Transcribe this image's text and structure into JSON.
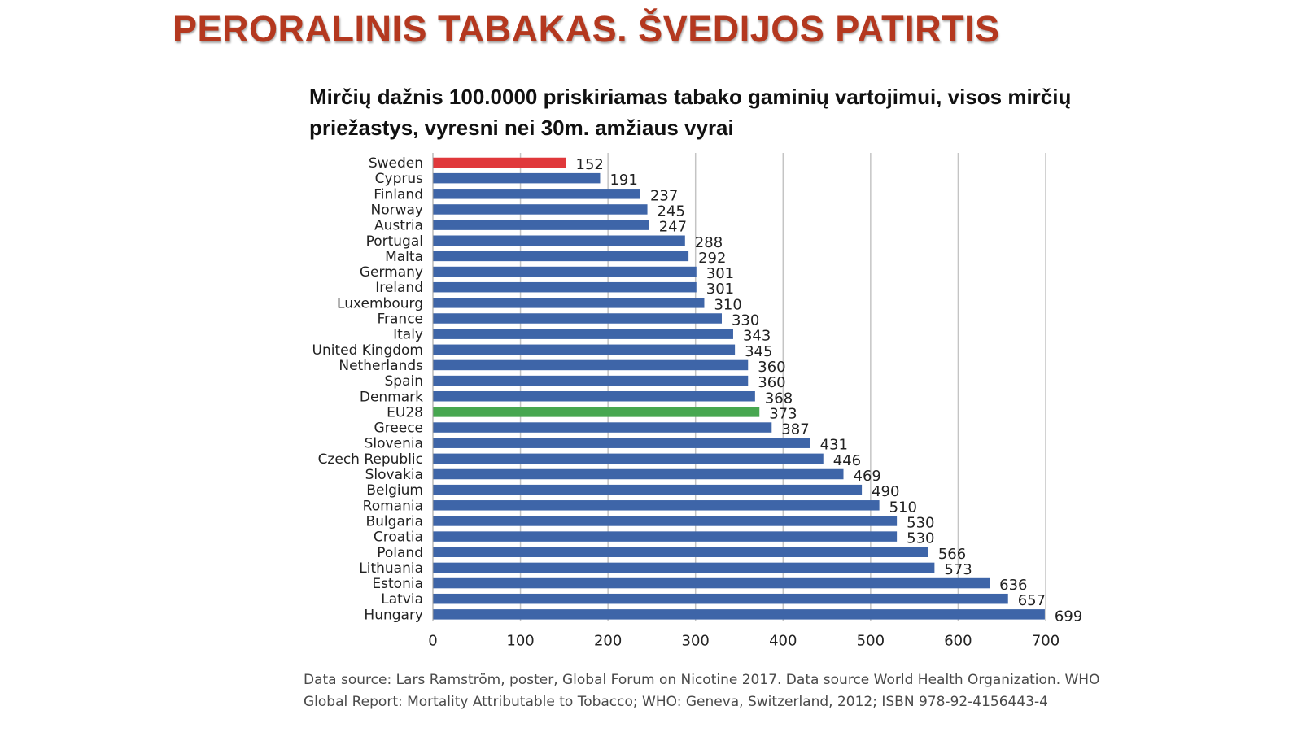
{
  "header": {
    "title": "PERORALINIS TABAKAS. ŠVEDIJOS PATIRTIS"
  },
  "chart_data": {
    "type": "bar",
    "orientation": "horizontal",
    "title": "Mirčių dažnis 100.0000 priskiriamas tabako gaminių vartojimui, visos mirčių priežastys, vyresni nei 30m. amžiaus vyrai",
    "xlabel": "",
    "ylabel": "",
    "xlim": [
      0,
      700
    ],
    "x_ticks": [
      0,
      100,
      200,
      300,
      400,
      500,
      600,
      700
    ],
    "grid": "vertical",
    "legend": "none",
    "colors": {
      "default": "#3e65a8",
      "highlight": "#e0383b",
      "average": "#47a750"
    },
    "categories": [
      "Sweden",
      "Cyprus",
      "Finland",
      "Norway",
      "Austria",
      "Portugal",
      "Malta",
      "Germany",
      "Ireland",
      "Luxembourg",
      "France",
      "Italy",
      "United Kingdom",
      "Netherlands",
      "Spain",
      "Denmark",
      "EU28",
      "Greece",
      "Slovenia",
      "Czech Republic",
      "Slovakia",
      "Belgium",
      "Romania",
      "Bulgaria",
      "Croatia",
      "Poland",
      "Lithuania",
      "Estonia",
      "Latvia",
      "Hungary"
    ],
    "values": [
      152,
      191,
      237,
      245,
      247,
      288,
      292,
      301,
      301,
      310,
      330,
      343,
      345,
      360,
      360,
      368,
      373,
      387,
      431,
      446,
      469,
      490,
      510,
      530,
      530,
      566,
      573,
      636,
      657,
      699
    ],
    "highlight_category": "Sweden",
    "average_category": "EU28"
  },
  "footer": {
    "source_line1": "Data source: Lars Ramström, poster, Global Forum on Nicotine 2017. Data source World Health Organization. WHO",
    "source_line2": "Global Report: Mortality Attributable to Tobacco; WHO: Geneva, Switzerland, 2012; ISBN 978-92-4156443-4"
  }
}
